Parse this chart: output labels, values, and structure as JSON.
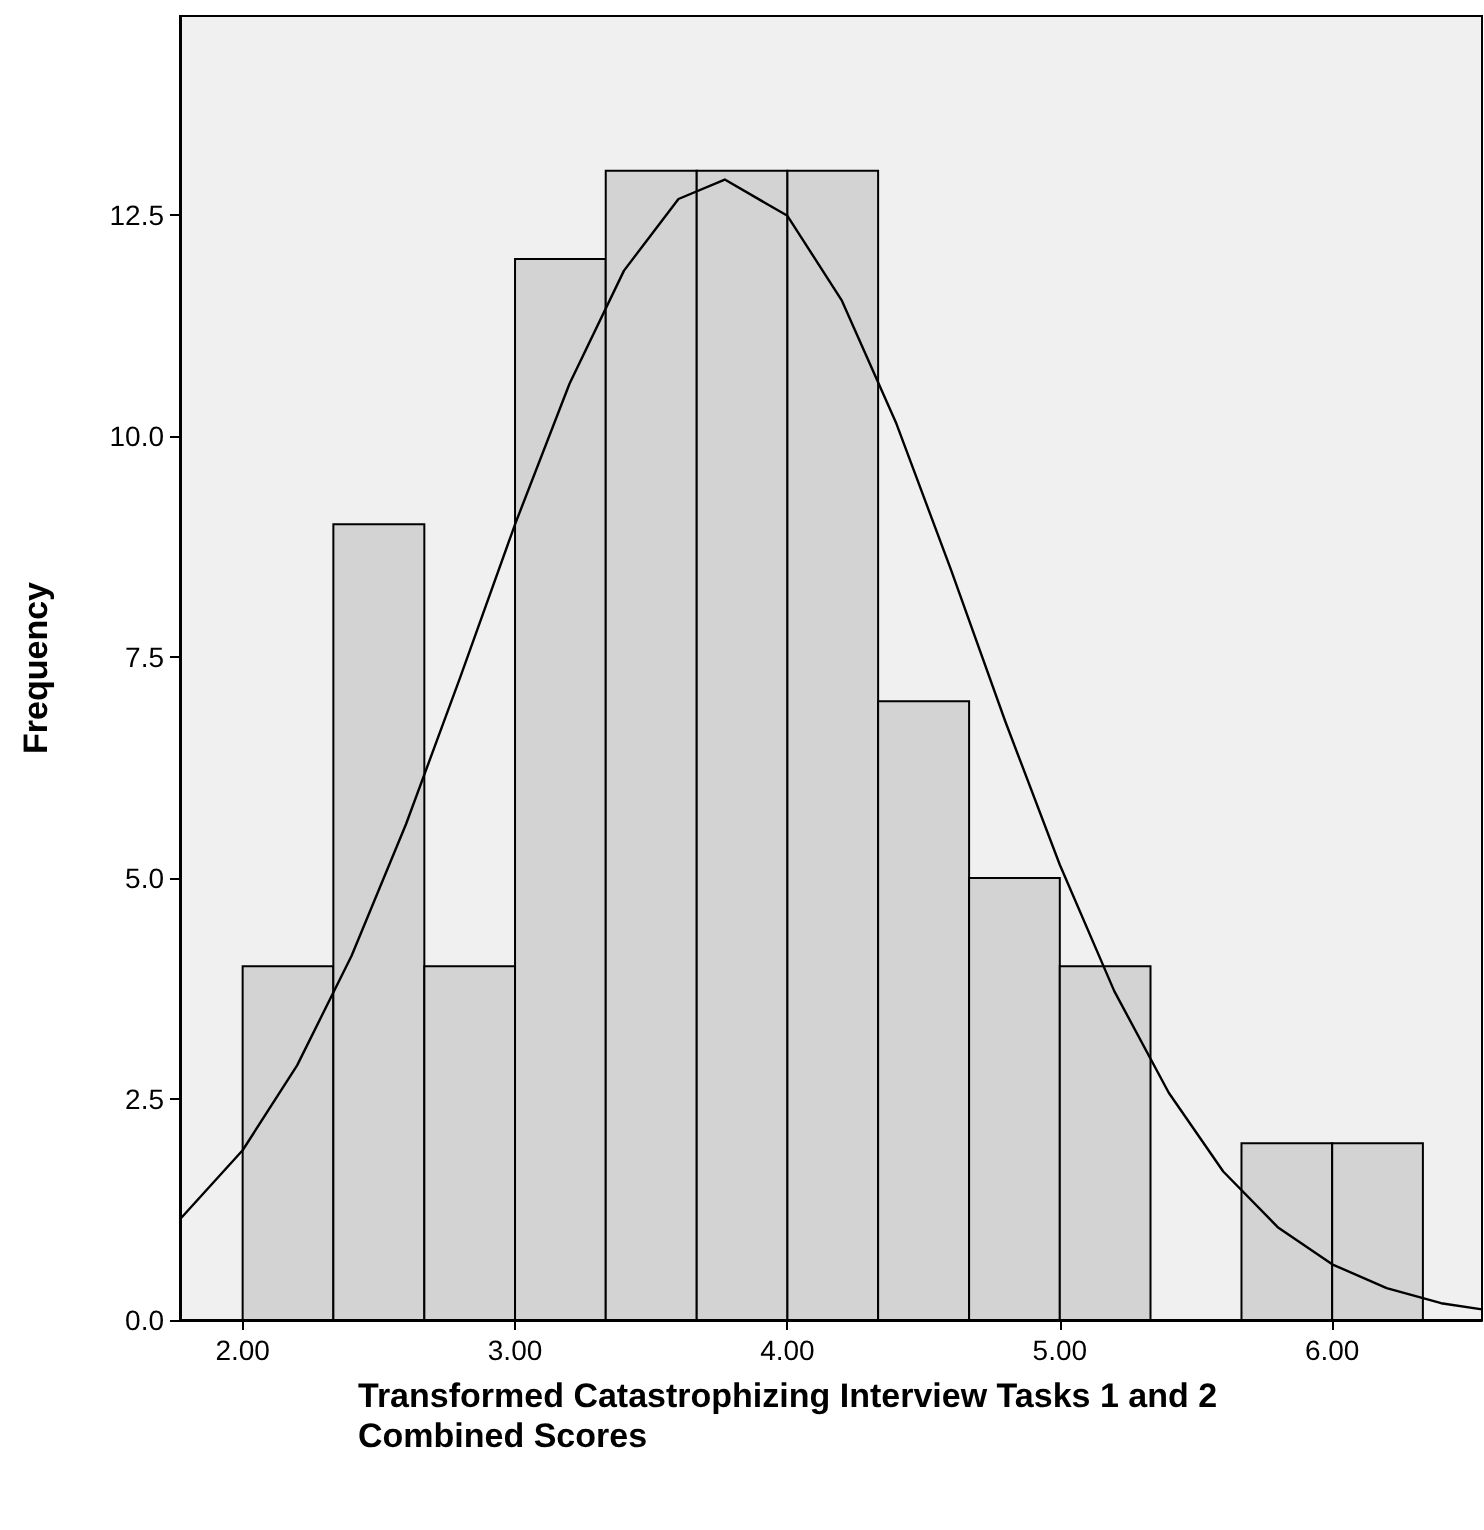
{
  "chart_data": {
    "type": "histogram",
    "xlabel": "Transformed Catastrophizing Interview Tasks 1 and 2 Combined Scores",
    "ylabel": "Frequency",
    "bins": [
      2.0,
      2.333,
      2.667,
      3.0,
      3.333,
      3.667,
      4.0,
      4.333,
      4.667,
      5.0,
      5.333,
      5.667,
      6.0,
      6.333
    ],
    "values": [
      4,
      9,
      4,
      12,
      13,
      13,
      13,
      7,
      5,
      4,
      0,
      2,
      2
    ],
    "color": "#d3d3d3",
    "series": [
      {
        "type": "line",
        "color": "#000000",
        "x": [
          1.77,
          2.0,
          2.2,
          2.4,
          2.6,
          2.8,
          3.0,
          3.2,
          3.4,
          3.6,
          3.77,
          4.0,
          4.2,
          4.4,
          4.6,
          4.8,
          5.0,
          5.2,
          5.4,
          5.6,
          5.8,
          6.0,
          6.2,
          6.4,
          6.55
        ],
        "values": [
          1.14,
          1.92,
          2.88,
          4.12,
          5.61,
          7.28,
          9.0,
          10.59,
          11.87,
          12.68,
          12.9,
          12.49,
          11.53,
          10.14,
          8.49,
          6.77,
          5.15,
          3.72,
          2.57,
          1.68,
          1.05,
          0.63,
          0.36,
          0.19,
          0.12
        ]
      }
    ],
    "xlim": [
      1.77,
      6.55
    ],
    "ylim": [
      0,
      14.75
    ],
    "xticks": [
      {
        "value": 2,
        "label": "2.00"
      },
      {
        "value": 3,
        "label": "3.00"
      },
      {
        "value": 4,
        "label": "4.00"
      },
      {
        "value": 5,
        "label": "5.00"
      },
      {
        "value": 6,
        "label": "6.00"
      }
    ],
    "yticks": [
      {
        "value": 0,
        "label": "0.0"
      },
      2.5,
      {
        "value": 5,
        "label": "5.0"
      },
      7.5,
      {
        "value": 10,
        "label": "10.0"
      },
      12.5
    ],
    "grid": false
  }
}
